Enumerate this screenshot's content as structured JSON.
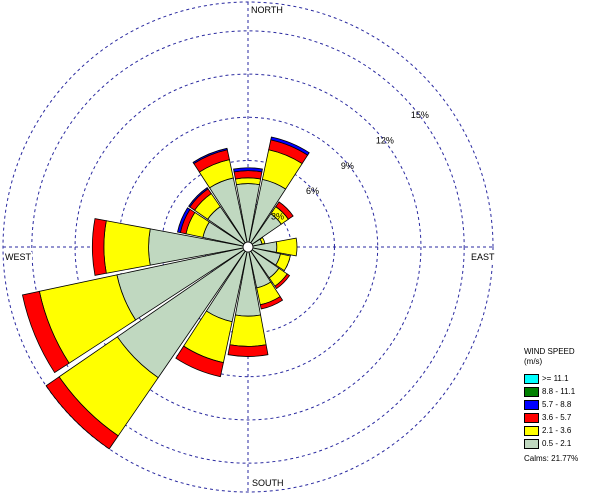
{
  "chart_data": {
    "type": "windrose",
    "directions": [
      "N",
      "NNE",
      "NE",
      "ENE",
      "E",
      "ESE",
      "SE",
      "SSE",
      "S",
      "SSW",
      "SW",
      "WSW",
      "W",
      "WNW",
      "NW",
      "NNW"
    ],
    "compass_labels": {
      "north": "NORTH",
      "east": "EAST",
      "south": "SOUTH",
      "west": "WEST"
    },
    "rings": [
      3,
      6,
      9,
      12,
      15
    ],
    "ring_labels": [
      "3%",
      "6%",
      "9%",
      "12%",
      "15%"
    ],
    "ring_max": 17,
    "bins": [
      {
        "label": ">= 11.1",
        "color": "#00ffff"
      },
      {
        "label": "8.8 - 11.1",
        "color": "#008000"
      },
      {
        "label": "5.7 -  8.8",
        "color": "#0000ff"
      },
      {
        "label": "3.6 -  5.7",
        "color": "#ff0000"
      },
      {
        "label": "2.1 -  3.6",
        "color": "#ffff00"
      },
      {
        "label": "0.5 -  2.1",
        "color": "#c0d8c0"
      }
    ],
    "cumulative_percent": [
      [
        4.4,
        4.8,
        5.3,
        5.5,
        5.5,
        5.5
      ],
      [
        4.8,
        6.9,
        7.6,
        7.8,
        7.8,
        7.8
      ],
      [
        2.8,
        3.4,
        3.8,
        3.8,
        3.8,
        3.8
      ],
      [
        1.0,
        1.2,
        1.2,
        1.2,
        1.2,
        1.2
      ],
      [
        2.0,
        3.4,
        3.4,
        3.4,
        3.4,
        3.4
      ],
      [
        2.3,
        3.0,
        3.0,
        3.0,
        3.0,
        3.0
      ],
      [
        2.6,
        3.3,
        3.5,
        3.5,
        3.5,
        3.5
      ],
      [
        2.9,
        4.1,
        4.4,
        4.4,
        4.4,
        4.4
      ],
      [
        4.8,
        6.9,
        7.6,
        7.6,
        7.6,
        7.6
      ],
      [
        5.3,
        8.2,
        9.2,
        9.2,
        9.2,
        9.2
      ],
      [
        11.0,
        15.9,
        17.0,
        17.0,
        17.0,
        17.0
      ],
      [
        9.3,
        14.8,
        16.0,
        16.0,
        16.0,
        16.0
      ],
      [
        6.9,
        10.0,
        10.8,
        10.8,
        10.8,
        10.8
      ],
      [
        3.2,
        4.4,
        4.8,
        5.0,
        5.0,
        5.0
      ],
      [
        3.4,
        4.5,
        4.9,
        5.0,
        5.0,
        5.0
      ],
      [
        4.9,
        6.2,
        6.9,
        7.0,
        7.0,
        7.0
      ]
    ]
  },
  "legend": {
    "title": "WIND SPEED",
    "units": "(m/s)",
    "calms": "Calms: 21.77%"
  }
}
